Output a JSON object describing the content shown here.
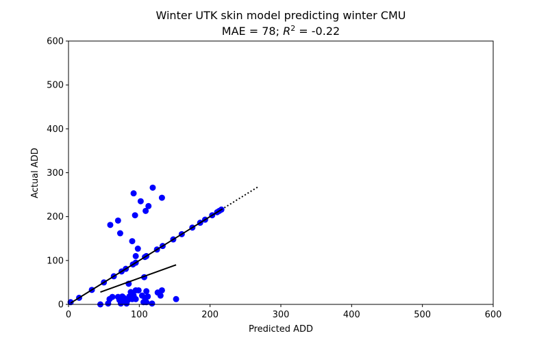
{
  "chart_data": {
    "type": "scatter",
    "title": "Winter UTK skin model predicting winter CMU",
    "subtitle": {
      "prefix": "MAE = 78; ",
      "r_symbol": "R",
      "r_exp": "2",
      "suffix": " = -0.22"
    },
    "xlabel": "Predicted ADD",
    "ylabel": "Actual ADD",
    "xlim": [
      0,
      600
    ],
    "ylim": [
      0,
      600
    ],
    "xticks": [
      "0",
      "100",
      "200",
      "300",
      "400",
      "500",
      "600"
    ],
    "yticks": [
      "0",
      "100",
      "200",
      "300",
      "400",
      "500",
      "600"
    ],
    "grid": false,
    "legend": "none",
    "point_color": "#0000ff",
    "line_color": "#000000",
    "points": [
      [
        3,
        5
      ],
      [
        15,
        15
      ],
      [
        33,
        33
      ],
      [
        50,
        50
      ],
      [
        64,
        64
      ],
      [
        75,
        75
      ],
      [
        81,
        81
      ],
      [
        91,
        91
      ],
      [
        95,
        95
      ],
      [
        108,
        108
      ],
      [
        110,
        110
      ],
      [
        125,
        125
      ],
      [
        133,
        133
      ],
      [
        148,
        148
      ],
      [
        160,
        160
      ],
      [
        175,
        175
      ],
      [
        186,
        186
      ],
      [
        193,
        193
      ],
      [
        203,
        203
      ],
      [
        210,
        210
      ],
      [
        213,
        213
      ],
      [
        216,
        216
      ],
      [
        59,
        181
      ],
      [
        70,
        191
      ],
      [
        73,
        162
      ],
      [
        90,
        144
      ],
      [
        95,
        110
      ],
      [
        98,
        127
      ],
      [
        107,
        62
      ],
      [
        92,
        253
      ],
      [
        102,
        235
      ],
      [
        94,
        203
      ],
      [
        109,
        213
      ],
      [
        113,
        224
      ],
      [
        119,
        266
      ],
      [
        132,
        243
      ],
      [
        45,
        0
      ],
      [
        56,
        2
      ],
      [
        58,
        12
      ],
      [
        62,
        17
      ],
      [
        70,
        17
      ],
      [
        72,
        10
      ],
      [
        74,
        2
      ],
      [
        76,
        18
      ],
      [
        78,
        15
      ],
      [
        80,
        6
      ],
      [
        82,
        2
      ],
      [
        84,
        10
      ],
      [
        85,
        47
      ],
      [
        86,
        18
      ],
      [
        88,
        28
      ],
      [
        90,
        12
      ],
      [
        92,
        20
      ],
      [
        95,
        32
      ],
      [
        95,
        12
      ],
      [
        99,
        32
      ],
      [
        104,
        20
      ],
      [
        106,
        5
      ],
      [
        108,
        15
      ],
      [
        110,
        30
      ],
      [
        110,
        5
      ],
      [
        112,
        18
      ],
      [
        118,
        2
      ],
      [
        126,
        27
      ],
      [
        130,
        20
      ],
      [
        132,
        32
      ],
      [
        152,
        12
      ]
    ],
    "lines": [
      {
        "style": "solid",
        "x": [
          3,
          216
        ],
        "y": [
          3,
          216
        ]
      },
      {
        "style": "dotted",
        "x": [
          216,
          268
        ],
        "y": [
          216,
          268
        ]
      },
      {
        "style": "solid",
        "x": [
          45,
          152
        ],
        "y": [
          28,
          90
        ]
      }
    ]
  }
}
